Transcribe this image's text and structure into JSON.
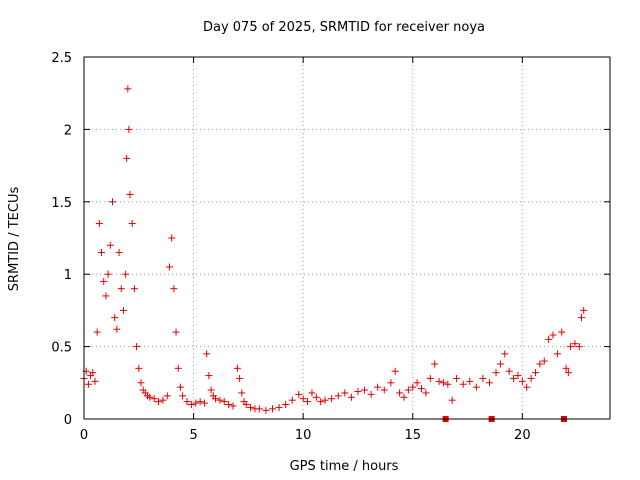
{
  "chart_data": {
    "type": "scatter",
    "title": "Day 075 of 2025, SRMTID for receiver noya",
    "xlabel": "GPS time / hours",
    "ylabel": "SRMTID / TECUs",
    "xlim": [
      0,
      24
    ],
    "ylim": [
      0,
      2.5
    ],
    "grid": true,
    "xticks": [
      0,
      5,
      10,
      15,
      20
    ],
    "xtick_labels": [
      "0",
      "5",
      "10",
      "15",
      "20"
    ],
    "yticks": [
      0,
      0.5,
      1,
      1.5,
      2,
      2.5
    ],
    "ytick_labels": [
      "0",
      "0.5",
      "1",
      "1.5",
      "2",
      "2.5"
    ],
    "series": [
      {
        "name": "SRMTID",
        "color": "#e00000",
        "marker": "plus",
        "x": [
          0.0,
          0.1,
          0.2,
          0.3,
          0.4,
          0.5,
          0.6,
          0.7,
          0.8,
          0.9,
          1.0,
          1.1,
          1.2,
          1.3,
          1.4,
          1.5,
          1.6,
          1.7,
          1.8,
          1.9,
          1.95,
          2.0,
          2.05,
          2.1,
          2.2,
          2.3,
          2.4,
          2.5,
          2.6,
          2.7,
          2.8,
          2.9,
          3.0,
          3.2,
          3.4,
          3.6,
          3.8,
          3.9,
          4.0,
          4.1,
          4.2,
          4.3,
          4.4,
          4.5,
          4.7,
          4.9,
          5.1,
          5.3,
          5.5,
          5.6,
          5.7,
          5.8,
          5.9,
          6.0,
          6.2,
          6.4,
          6.6,
          6.8,
          7.0,
          7.1,
          7.2,
          7.3,
          7.4,
          7.6,
          7.8,
          8.0,
          8.3,
          8.6,
          8.9,
          9.2,
          9.5,
          9.8,
          10.0,
          10.2,
          10.4,
          10.6,
          10.8,
          11.0,
          11.3,
          11.6,
          11.9,
          12.2,
          12.5,
          12.8,
          13.1,
          13.4,
          13.7,
          14.0,
          14.2,
          14.4,
          14.6,
          14.8,
          15.0,
          15.2,
          15.4,
          15.6,
          15.8,
          16.0,
          16.2,
          16.4,
          16.6,
          16.8,
          17.0,
          17.3,
          17.6,
          17.9,
          18.2,
          18.5,
          18.8,
          19.0,
          19.2,
          19.4,
          19.6,
          19.8,
          20.0,
          20.2,
          20.4,
          20.6,
          20.8,
          21.0,
          21.2,
          21.4,
          21.6,
          21.8,
          22.0,
          22.1,
          22.2,
          22.4,
          22.6,
          22.7,
          22.8
        ],
        "y": [
          0.28,
          0.33,
          0.24,
          0.3,
          0.32,
          0.26,
          0.6,
          1.35,
          1.15,
          0.95,
          0.85,
          1.0,
          1.2,
          1.5,
          0.7,
          0.62,
          1.15,
          0.9,
          0.75,
          1.0,
          1.8,
          2.28,
          2.0,
          1.55,
          1.35,
          0.9,
          0.5,
          0.35,
          0.25,
          0.2,
          0.18,
          0.16,
          0.15,
          0.14,
          0.12,
          0.13,
          0.16,
          1.05,
          1.25,
          0.9,
          0.6,
          0.35,
          0.22,
          0.16,
          0.12,
          0.1,
          0.11,
          0.12,
          0.11,
          0.45,
          0.3,
          0.2,
          0.16,
          0.14,
          0.13,
          0.12,
          0.1,
          0.09,
          0.35,
          0.28,
          0.18,
          0.12,
          0.1,
          0.08,
          0.07,
          0.07,
          0.06,
          0.07,
          0.08,
          0.1,
          0.13,
          0.17,
          0.14,
          0.12,
          0.18,
          0.15,
          0.12,
          0.13,
          0.14,
          0.16,
          0.18,
          0.15,
          0.19,
          0.2,
          0.17,
          0.22,
          0.2,
          0.25,
          0.33,
          0.18,
          0.15,
          0.2,
          0.22,
          0.25,
          0.21,
          0.18,
          0.28,
          0.38,
          0.26,
          0.25,
          0.24,
          0.13,
          0.28,
          0.24,
          0.26,
          0.22,
          0.28,
          0.25,
          0.32,
          0.38,
          0.45,
          0.33,
          0.28,
          0.3,
          0.26,
          0.22,
          0.28,
          0.32,
          0.38,
          0.4,
          0.55,
          0.58,
          0.45,
          0.6,
          0.35,
          0.32,
          0.5,
          0.52,
          0.5,
          0.7,
          0.75
        ]
      }
    ],
    "markers_at_zero": {
      "marker": "square",
      "x": [
        16.5,
        18.6,
        21.9
      ]
    }
  }
}
